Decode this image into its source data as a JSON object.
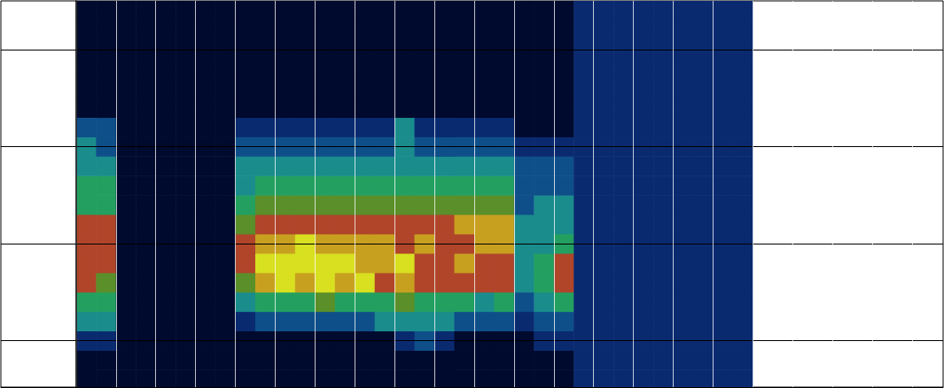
{
  "chart_data": {
    "type": "heatmap",
    "xlim": [
      -1.89,
      21.78
    ],
    "ylim": [
      0.52,
      4.5
    ],
    "xticks": [
      0,
      1,
      2,
      3,
      4,
      5,
      6,
      7,
      8,
      9,
      10,
      11,
      12,
      13,
      14,
      15,
      16,
      17,
      18,
      19,
      20,
      21
    ],
    "yticks": [
      1,
      2,
      3,
      4
    ],
    "grid": true,
    "tick_labels": false,
    "zlim": [
      0,
      8
    ],
    "x_edges": [
      0,
      0.5,
      1,
      1.5,
      2,
      2.5,
      3,
      3.5,
      4,
      4.5,
      5,
      5.5,
      6,
      6.5,
      7,
      7.5,
      8,
      8.5,
      9,
      9.5,
      10,
      10.5,
      11,
      11.5,
      12,
      12.5,
      13,
      13.5,
      14,
      14.5,
      15,
      15.5,
      16,
      16.5,
      17
    ],
    "y_edges": [
      0.5,
      0.7,
      0.9,
      1.1,
      1.3,
      1.5,
      1.7,
      1.9,
      2.1,
      2.3,
      2.5,
      2.7,
      2.9,
      3.1,
      3.3,
      3.5,
      3.7,
      3.9,
      4.1,
      4.3,
      4.5
    ],
    "cells": [
      [
        0,
        0,
        0,
        0,
        0,
        0,
        0,
        0,
        0,
        0,
        0,
        0,
        0,
        0,
        0,
        0,
        0,
        0,
        0,
        0,
        0,
        0,
        0,
        0,
        0,
        1,
        1,
        1,
        1,
        1,
        1,
        1,
        1,
        1
      ],
      [
        0,
        0,
        0,
        0,
        0,
        0,
        0,
        0,
        0,
        0,
        0,
        0,
        0,
        0,
        0,
        0,
        0,
        0,
        0,
        0,
        0,
        0,
        0,
        0,
        0,
        1,
        1,
        1,
        1,
        1,
        1,
        1,
        1,
        1
      ],
      [
        1,
        1,
        0,
        0,
        0,
        0,
        0,
        0,
        0,
        0,
        0,
        0,
        0,
        0,
        0,
        0,
        1,
        2,
        1,
        0,
        0,
        0,
        0,
        1,
        1,
        1,
        1,
        1,
        1,
        1,
        1,
        1,
        1,
        1
      ],
      [
        3,
        3,
        0,
        0,
        0,
        0,
        0,
        0,
        1,
        2,
        2,
        2,
        2,
        2,
        2,
        3,
        3,
        3,
        3,
        2,
        2,
        2,
        1,
        2,
        2,
        1,
        1,
        1,
        1,
        1,
        1,
        1,
        1,
        1
      ],
      [
        4,
        4,
        0,
        0,
        0,
        0,
        0,
        0,
        3,
        4,
        4,
        4,
        5,
        4,
        4,
        4,
        5,
        4,
        4,
        4,
        3,
        4,
        2,
        3,
        4,
        1,
        1,
        1,
        1,
        1,
        1,
        1,
        1,
        1
      ],
      [
        6,
        5,
        0,
        0,
        0,
        0,
        0,
        0,
        5,
        7,
        8,
        7,
        8,
        7,
        8,
        6,
        7,
        6,
        6,
        6,
        6,
        6,
        3,
        4,
        6,
        1,
        1,
        1,
        1,
        1,
        1,
        1,
        1,
        1
      ],
      [
        6,
        6,
        0,
        0,
        0,
        0,
        0,
        0,
        6,
        8,
        8,
        8,
        8,
        8,
        7,
        7,
        8,
        6,
        6,
        7,
        6,
        6,
        3,
        4,
        6,
        1,
        1,
        1,
        1,
        1,
        1,
        1,
        1,
        1
      ],
      [
        6,
        6,
        0,
        0,
        0,
        0,
        0,
        0,
        6,
        7,
        7,
        8,
        7,
        7,
        7,
        7,
        6,
        7,
        6,
        6,
        7,
        7,
        3,
        3,
        4,
        1,
        1,
        1,
        1,
        1,
        1,
        1,
        1,
        1
      ],
      [
        6,
        6,
        0,
        0,
        0,
        0,
        0,
        0,
        5,
        6,
        6,
        6,
        6,
        6,
        6,
        6,
        6,
        6,
        6,
        7,
        7,
        7,
        3,
        3,
        3,
        1,
        1,
        1,
        1,
        1,
        1,
        1,
        1,
        1
      ],
      [
        4,
        4,
        0,
        0,
        0,
        0,
        0,
        0,
        4,
        5,
        5,
        5,
        5,
        5,
        5,
        5,
        5,
        5,
        5,
        5,
        5,
        5,
        2,
        3,
        3,
        1,
        1,
        1,
        1,
        1,
        1,
        1,
        1,
        1
      ],
      [
        4,
        4,
        0,
        0,
        0,
        0,
        0,
        0,
        3,
        4,
        4,
        4,
        4,
        4,
        4,
        4,
        4,
        4,
        4,
        4,
        4,
        4,
        2,
        2,
        2,
        1,
        1,
        1,
        1,
        1,
        1,
        1,
        1,
        1
      ],
      [
        3,
        3,
        0,
        0,
        0,
        0,
        0,
        0,
        3,
        3,
        3,
        3,
        3,
        3,
        3,
        3,
        3,
        3,
        3,
        3,
        3,
        3,
        2,
        2,
        2,
        1,
        1,
        1,
        1,
        1,
        1,
        1,
        1,
        1
      ],
      [
        3,
        2,
        0,
        0,
        0,
        0,
        0,
        0,
        2,
        2,
        2,
        2,
        2,
        2,
        2,
        2,
        3,
        2,
        2,
        2,
        2,
        2,
        1,
        1,
        1,
        1,
        1,
        1,
        1,
        1,
        1,
        1,
        1,
        1
      ],
      [
        2,
        2,
        0,
        0,
        0,
        0,
        0,
        0,
        1,
        1,
        1,
        1,
        1,
        1,
        1,
        1,
        3,
        1,
        1,
        1,
        1,
        1,
        0,
        0,
        0,
        1,
        1,
        1,
        1,
        1,
        1,
        1,
        1,
        1
      ],
      [
        0,
        0,
        0,
        0,
        0,
        0,
        0,
        0,
        0,
        0,
        0,
        0,
        0,
        0,
        0,
        0,
        0,
        0,
        0,
        0,
        0,
        0,
        0,
        0,
        0,
        1,
        1,
        1,
        1,
        1,
        1,
        1,
        1,
        1
      ],
      [
        0,
        0,
        0,
        0,
        0,
        0,
        0,
        0,
        0,
        0,
        0,
        0,
        0,
        0,
        0,
        0,
        0,
        0,
        0,
        0,
        0,
        0,
        0,
        0,
        0,
        1,
        1,
        1,
        1,
        1,
        1,
        1,
        1,
        1
      ],
      [
        0,
        0,
        0,
        0,
        0,
        0,
        0,
        0,
        0,
        0,
        0,
        0,
        0,
        0,
        0,
        0,
        0,
        0,
        0,
        0,
        0,
        0,
        0,
        0,
        0,
        1,
        1,
        1,
        1,
        1,
        1,
        1,
        1,
        1
      ],
      [
        0,
        0,
        0,
        0,
        0,
        0,
        0,
        0,
        0,
        0,
        0,
        0,
        0,
        0,
        0,
        0,
        0,
        0,
        0,
        0,
        0,
        0,
        0,
        0,
        0,
        1,
        1,
        1,
        1,
        1,
        1,
        1,
        1,
        1
      ],
      [
        0,
        0,
        0,
        0,
        0,
        0,
        0,
        0,
        0,
        0,
        0,
        0,
        0,
        0,
        0,
        0,
        0,
        0,
        0,
        0,
        0,
        0,
        0,
        0,
        0,
        1,
        1,
        1,
        1,
        1,
        1,
        1,
        1,
        1
      ],
      [
        0,
        0,
        0,
        0,
        0,
        0,
        0,
        0,
        0,
        0,
        0,
        0,
        0,
        0,
        0,
        0,
        0,
        0,
        0,
        0,
        0,
        0,
        0,
        0,
        0,
        1,
        1,
        1,
        1,
        1,
        1,
        1,
        1,
        1
      ]
    ]
  }
}
